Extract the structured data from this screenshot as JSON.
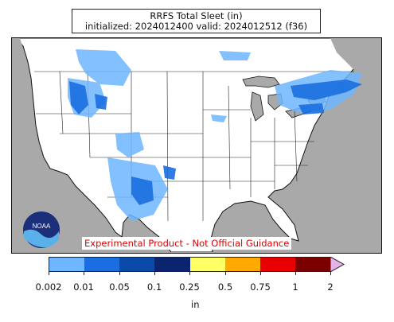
{
  "title": {
    "line1": "RRFS Total Sleet (in)",
    "line2": "initialized: 2024012400 valid: 2024012512 (f36)"
  },
  "disclaimer": "Experimental Product - Not Official Guidance",
  "logo": {
    "name": "noaa-logo",
    "text": "NOAA"
  },
  "colorbar": {
    "colors": [
      "#6eb6ff",
      "#1a6ee0",
      "#0a4aa8",
      "#0a2470",
      "#ffff66",
      "#ffaa00",
      "#e60000",
      "#7a0000"
    ],
    "extend_color": "#e6b3e6",
    "tick_labels": [
      "0.002",
      "0.01",
      "0.05",
      "0.1",
      "0.25",
      "0.5",
      "0.75",
      "1",
      "2"
    ],
    "unit": "in"
  },
  "colors": {
    "ocean": "#a9a9a9",
    "land": "#ffffff",
    "precip_light": "#6eb6ff",
    "precip_medium": "#1a6ee0"
  }
}
